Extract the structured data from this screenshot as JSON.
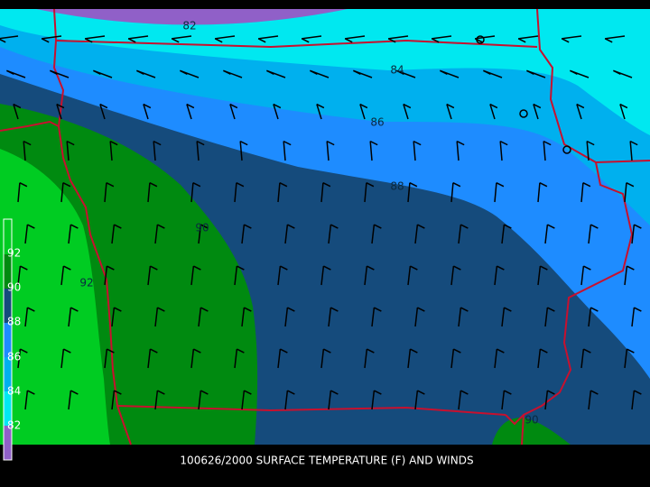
{
  "title": "100626/2000 SURFACE TEMPERATURE (F) AND WINDS",
  "contour_labels": [
    "82",
    "84",
    "86",
    "88",
    "90",
    "92",
    "90"
  ],
  "colorbar_labels": [
    "92",
    "90",
    "88",
    "86",
    "84",
    "82"
  ]
}
